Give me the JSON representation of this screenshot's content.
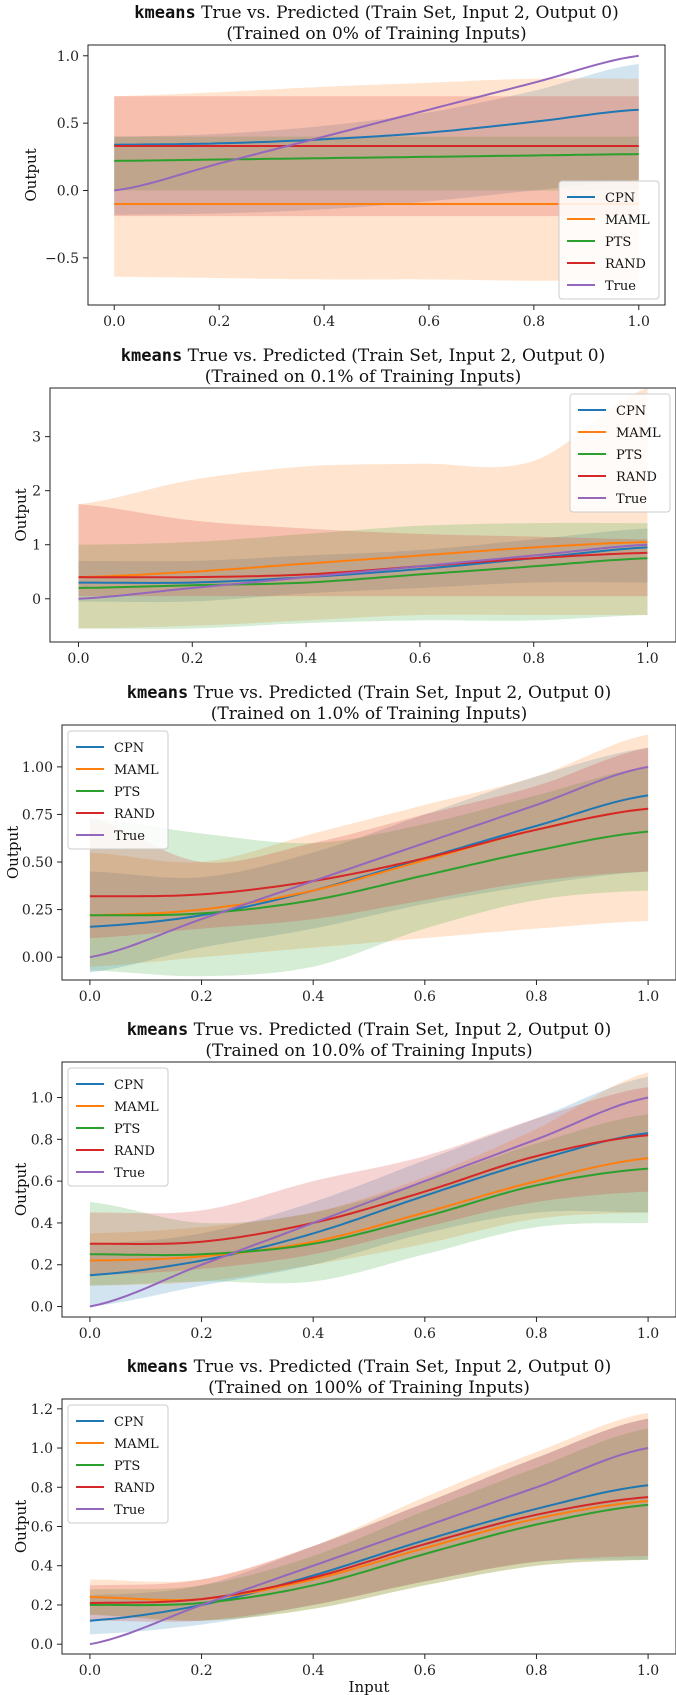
{
  "colors": {
    "CPN": "#1f77b4",
    "MAML": "#ff7f0e",
    "PTS": "#2ca02c",
    "RAND": "#d62728",
    "True": "#9467bd"
  },
  "chart_data": [
    {
      "type": "line",
      "title_mono": "kmeans",
      "title_rest": " True vs. Predicted (Train Set, Input 2, Output 0)",
      "subtitle": "(Trained on 0% of Training Inputs)",
      "xlabel": "",
      "ylabel": "Output",
      "xlim": [
        -0.05,
        1.05
      ],
      "ylim": [
        -0.85,
        1.08
      ],
      "xticks": [
        0.0,
        0.2,
        0.4,
        0.6,
        0.8,
        1.0
      ],
      "xtick_labels": [
        "0.0",
        "0.2",
        "0.4",
        "0.6",
        "0.8",
        "1.0"
      ],
      "yticks": [
        -0.5,
        0.0,
        0.5,
        1.0
      ],
      "ytick_labels": [
        "−0.5",
        "0.0",
        "0.5",
        "1.0"
      ],
      "legend": "lower-right",
      "x": [
        0.0,
        0.2,
        0.4,
        0.6,
        0.8,
        1.0
      ],
      "series": [
        {
          "name": "CPN",
          "values": [
            0.34,
            0.35,
            0.38,
            0.43,
            0.51,
            0.6
          ],
          "lower": [
            -0.18,
            -0.17,
            -0.14,
            -0.08,
            0.0,
            0.08
          ],
          "upper": [
            0.4,
            0.42,
            0.48,
            0.58,
            0.74,
            0.94
          ]
        },
        {
          "name": "MAML",
          "values": [
            -0.1,
            -0.1,
            -0.1,
            -0.1,
            -0.1,
            -0.1
          ],
          "lower": [
            -0.64,
            -0.65,
            -0.66,
            -0.66,
            -0.67,
            -0.67
          ],
          "upper": [
            0.7,
            0.73,
            0.77,
            0.8,
            0.83,
            0.83
          ]
        },
        {
          "name": "PTS",
          "values": [
            0.22,
            0.23,
            0.24,
            0.25,
            0.26,
            0.27
          ],
          "lower": [
            0.0,
            0.0,
            0.0,
            0.0,
            0.0,
            0.0
          ],
          "upper": [
            0.4,
            0.4,
            0.4,
            0.4,
            0.4,
            0.4
          ]
        },
        {
          "name": "RAND",
          "values": [
            0.33,
            0.33,
            0.33,
            0.33,
            0.33,
            0.33
          ],
          "lower": [
            -0.19,
            -0.19,
            -0.19,
            -0.19,
            -0.19,
            -0.19
          ],
          "upper": [
            0.7,
            0.7,
            0.7,
            0.7,
            0.7,
            0.7
          ]
        },
        {
          "name": "True",
          "values": [
            0.0,
            0.2,
            0.4,
            0.6,
            0.8,
            1.0
          ]
        }
      ]
    },
    {
      "type": "line",
      "title_mono": "kmeans",
      "title_rest": " True vs. Predicted (Train Set, Input 2, Output 0)",
      "subtitle": "(Trained on 0.1% of Training Inputs)",
      "xlabel": "",
      "ylabel": "Output",
      "xlim": [
        -0.05,
        1.05
      ],
      "ylim": [
        -0.8,
        3.9
      ],
      "xticks": [
        0.0,
        0.2,
        0.4,
        0.6,
        0.8,
        1.0
      ],
      "xtick_labels": [
        "0.0",
        "0.2",
        "0.4",
        "0.6",
        "0.8",
        "1.0"
      ],
      "yticks": [
        0,
        1,
        2,
        3
      ],
      "ytick_labels": [
        "0",
        "1",
        "2",
        "3"
      ],
      "legend": "upper-right",
      "x": [
        0.0,
        0.2,
        0.4,
        0.6,
        0.8,
        1.0
      ],
      "series": [
        {
          "name": "CPN",
          "values": [
            0.3,
            0.3,
            0.4,
            0.55,
            0.75,
            0.95
          ],
          "lower": [
            -0.05,
            -0.05,
            0.1,
            0.2,
            0.3,
            0.3
          ],
          "upper": [
            0.7,
            0.7,
            0.8,
            0.9,
            1.1,
            1.3
          ]
        },
        {
          "name": "MAML",
          "values": [
            0.4,
            0.5,
            0.65,
            0.8,
            0.95,
            1.05
          ],
          "lower": [
            -0.55,
            -0.5,
            -0.4,
            -0.3,
            -0.3,
            -0.3
          ],
          "upper": [
            1.75,
            2.2,
            2.45,
            2.5,
            2.55,
            3.9
          ]
        },
        {
          "name": "PTS",
          "values": [
            0.2,
            0.25,
            0.3,
            0.45,
            0.6,
            0.75
          ],
          "lower": [
            -0.55,
            -0.55,
            -0.45,
            -0.4,
            -0.4,
            -0.3
          ],
          "upper": [
            1.0,
            1.05,
            1.2,
            1.35,
            1.4,
            1.4
          ]
        },
        {
          "name": "RAND",
          "values": [
            0.4,
            0.4,
            0.45,
            0.6,
            0.75,
            0.85
          ],
          "lower": [
            0.05,
            0.05,
            0.05,
            0.05,
            0.05,
            0.05
          ],
          "upper": [
            1.75,
            1.45,
            1.3,
            1.2,
            1.15,
            1.1
          ]
        },
        {
          "name": "True",
          "values": [
            0.0,
            0.2,
            0.4,
            0.6,
            0.8,
            1.0
          ]
        }
      ]
    },
    {
      "type": "line",
      "title_mono": "kmeans",
      "title_rest": " True vs. Predicted (Train Set, Input 2, Output 0)",
      "subtitle": "(Trained on 1.0% of Training Inputs)",
      "xlabel": "",
      "ylabel": "Output",
      "xlim": [
        -0.05,
        1.05
      ],
      "ylim": [
        -0.12,
        1.22
      ],
      "xticks": [
        0.0,
        0.2,
        0.4,
        0.6,
        0.8,
        1.0
      ],
      "xtick_labels": [
        "0.0",
        "0.2",
        "0.4",
        "0.6",
        "0.8",
        "1.0"
      ],
      "yticks": [
        0.0,
        0.25,
        0.5,
        0.75,
        1.0
      ],
      "ytick_labels": [
        "0.00",
        "0.25",
        "0.50",
        "0.75",
        "1.00"
      ],
      "legend": "upper-left",
      "x": [
        0.0,
        0.2,
        0.4,
        0.6,
        0.8,
        1.0
      ],
      "series": [
        {
          "name": "CPN",
          "values": [
            0.16,
            0.22,
            0.35,
            0.52,
            0.69,
            0.85
          ],
          "lower": [
            -0.08,
            0.05,
            0.15,
            0.28,
            0.38,
            0.45
          ],
          "upper": [
            0.45,
            0.42,
            0.55,
            0.75,
            0.95,
            1.1
          ]
        },
        {
          "name": "MAML",
          "values": [
            0.22,
            0.25,
            0.35,
            0.51,
            0.67,
            0.78
          ],
          "lower": [
            -0.05,
            0.0,
            0.05,
            0.1,
            0.15,
            0.19
          ],
          "upper": [
            0.55,
            0.5,
            0.65,
            0.8,
            0.95,
            1.17
          ]
        },
        {
          "name": "PTS",
          "values": [
            0.22,
            0.23,
            0.3,
            0.43,
            0.56,
            0.66
          ],
          "lower": [
            -0.07,
            -0.1,
            -0.05,
            0.15,
            0.3,
            0.35
          ],
          "upper": [
            0.73,
            0.65,
            0.6,
            0.7,
            0.85,
            1.0
          ]
        },
        {
          "name": "RAND",
          "values": [
            0.32,
            0.33,
            0.4,
            0.52,
            0.67,
            0.78
          ],
          "lower": [
            0.1,
            0.15,
            0.2,
            0.3,
            0.4,
            0.45
          ],
          "upper": [
            0.73,
            0.5,
            0.6,
            0.75,
            0.9,
            1.1
          ]
        },
        {
          "name": "True",
          "values": [
            0.0,
            0.2,
            0.4,
            0.6,
            0.8,
            1.0
          ]
        }
      ]
    },
    {
      "type": "line",
      "title_mono": "kmeans",
      "title_rest": " True vs. Predicted (Train Set, Input 2, Output 0)",
      "subtitle": "(Trained on 10.0% of Training Inputs)",
      "xlabel": "",
      "ylabel": "Output",
      "xlim": [
        -0.05,
        1.05
      ],
      "ylim": [
        -0.05,
        1.17
      ],
      "xticks": [
        0.0,
        0.2,
        0.4,
        0.6,
        0.8,
        1.0
      ],
      "xtick_labels": [
        "0.0",
        "0.2",
        "0.4",
        "0.6",
        "0.8",
        "1.0"
      ],
      "yticks": [
        0.0,
        0.2,
        0.4,
        0.6,
        0.8,
        1.0
      ],
      "ytick_labels": [
        "0.0",
        "0.2",
        "0.4",
        "0.6",
        "0.8",
        "1.0"
      ],
      "legend": "upper-left",
      "x": [
        0.0,
        0.2,
        0.4,
        0.6,
        0.8,
        1.0
      ],
      "series": [
        {
          "name": "CPN",
          "values": [
            0.15,
            0.22,
            0.35,
            0.53,
            0.7,
            0.83
          ],
          "lower": [
            0.0,
            0.1,
            0.2,
            0.35,
            0.45,
            0.45
          ],
          "upper": [
            0.3,
            0.35,
            0.5,
            0.7,
            0.9,
            1.1
          ]
        },
        {
          "name": "MAML",
          "values": [
            0.22,
            0.24,
            0.31,
            0.45,
            0.6,
            0.71
          ],
          "lower": [
            0.1,
            0.12,
            0.2,
            0.3,
            0.42,
            0.45
          ],
          "upper": [
            0.35,
            0.38,
            0.45,
            0.62,
            0.85,
            1.12
          ]
        },
        {
          "name": "PTS",
          "values": [
            0.25,
            0.25,
            0.3,
            0.43,
            0.58,
            0.66
          ],
          "lower": [
            0.1,
            0.12,
            0.12,
            0.25,
            0.38,
            0.4
          ],
          "upper": [
            0.5,
            0.4,
            0.45,
            0.6,
            0.78,
            0.92
          ]
        },
        {
          "name": "RAND",
          "values": [
            0.3,
            0.31,
            0.4,
            0.55,
            0.72,
            0.82
          ],
          "lower": [
            0.15,
            0.18,
            0.25,
            0.38,
            0.5,
            0.55
          ],
          "upper": [
            0.45,
            0.46,
            0.6,
            0.72,
            0.9,
            1.05
          ]
        },
        {
          "name": "True",
          "values": [
            0.0,
            0.2,
            0.4,
            0.6,
            0.8,
            1.0
          ]
        }
      ]
    },
    {
      "type": "line",
      "title_mono": "kmeans",
      "title_rest": " True vs. Predicted (Train Set, Input 2, Output 0)",
      "subtitle": "(Trained on 100% of Training Inputs)",
      "xlabel": "Input",
      "ylabel": "Output",
      "xlim": [
        -0.05,
        1.05
      ],
      "ylim": [
        -0.05,
        1.25
      ],
      "xticks": [
        0.0,
        0.2,
        0.4,
        0.6,
        0.8,
        1.0
      ],
      "xtick_labels": [
        "0.0",
        "0.2",
        "0.4",
        "0.6",
        "0.8",
        "1.0"
      ],
      "yticks": [
        0.0,
        0.2,
        0.4,
        0.6,
        0.8,
        1.0,
        1.2
      ],
      "ytick_labels": [
        "0.0",
        "0.2",
        "0.4",
        "0.6",
        "0.8",
        "1.0",
        "1.2"
      ],
      "legend": "upper-left",
      "x": [
        0.0,
        0.2,
        0.4,
        0.6,
        0.8,
        1.0
      ],
      "series": [
        {
          "name": "CPN",
          "values": [
            0.12,
            0.2,
            0.35,
            0.53,
            0.69,
            0.81
          ],
          "lower": [
            0.05,
            0.1,
            0.2,
            0.32,
            0.42,
            0.43
          ],
          "upper": [
            0.25,
            0.3,
            0.5,
            0.72,
            0.95,
            1.15
          ]
        },
        {
          "name": "MAML",
          "values": [
            0.24,
            0.23,
            0.33,
            0.49,
            0.64,
            0.73
          ],
          "lower": [
            0.15,
            0.12,
            0.18,
            0.3,
            0.4,
            0.43
          ],
          "upper": [
            0.33,
            0.33,
            0.5,
            0.75,
            0.98,
            1.18
          ]
        },
        {
          "name": "PTS",
          "values": [
            0.2,
            0.21,
            0.3,
            0.46,
            0.61,
            0.71
          ],
          "lower": [
            0.15,
            0.12,
            0.18,
            0.3,
            0.4,
            0.43
          ],
          "upper": [
            0.28,
            0.3,
            0.45,
            0.68,
            0.9,
            1.1
          ]
        },
        {
          "name": "RAND",
          "values": [
            0.21,
            0.23,
            0.34,
            0.51,
            0.66,
            0.75
          ],
          "lower": [
            0.12,
            0.12,
            0.2,
            0.32,
            0.42,
            0.45
          ],
          "upper": [
            0.3,
            0.33,
            0.5,
            0.72,
            0.95,
            1.15
          ]
        },
        {
          "name": "True",
          "values": [
            0.0,
            0.2,
            0.4,
            0.6,
            0.8,
            1.0
          ]
        }
      ]
    }
  ]
}
